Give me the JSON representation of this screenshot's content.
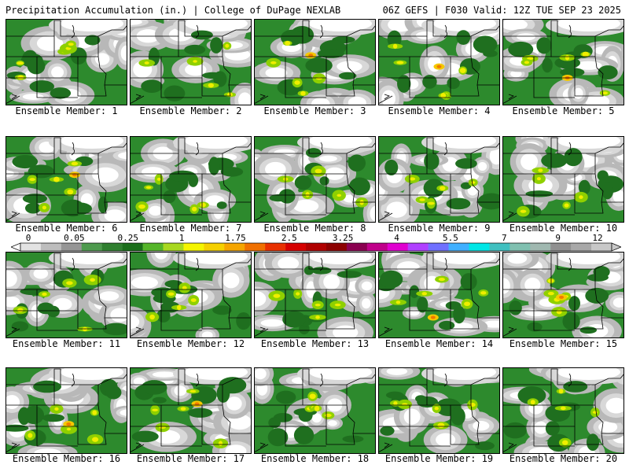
{
  "header": {
    "left": "Precipitation Accumulation (in.) | College of DuPage NEXLAB",
    "right": "06Z GEFS | F030 Valid: 12Z TUE SEP 23 2025"
  },
  "legend": {
    "ticks": [
      "0",
      "0.05",
      "0.25",
      "1",
      "1.75",
      "2.5",
      "3.25",
      "4",
      "5.5",
      "7",
      "9",
      "12"
    ],
    "colors": [
      "#e3e3e3",
      "#bdbdbd",
      "#969696",
      "#4e9a4e",
      "#2f7f2f",
      "#1a6e1a",
      "#55b52a",
      "#a8d820",
      "#f5f500",
      "#f5d000",
      "#f5a500",
      "#f07000",
      "#e83000",
      "#d60000",
      "#b00000",
      "#8c0000",
      "#8a0050",
      "#c0008a",
      "#e000d0",
      "#b040ff",
      "#7070ff",
      "#40b0ff",
      "#00e6e6",
      "#40c0c0",
      "#80c0b0",
      "#a0b8b0",
      "#909090",
      "#a8a8a8",
      "#c8c8c8"
    ]
  },
  "panels": [
    {
      "label": "Ensemble Member: 1"
    },
    {
      "label": "Ensemble Member: 2"
    },
    {
      "label": "Ensemble Member: 3"
    },
    {
      "label": "Ensemble Member: 4"
    },
    {
      "label": "Ensemble Member: 5"
    },
    {
      "label": "Ensemble Member: 6"
    },
    {
      "label": "Ensemble Member: 7"
    },
    {
      "label": "Ensemble Member: 8"
    },
    {
      "label": "Ensemble Member: 9"
    },
    {
      "label": "Ensemble Member: 10"
    },
    {
      "label": "Ensemble Member: 11"
    },
    {
      "label": "Ensemble Member: 12"
    },
    {
      "label": "Ensemble Member: 13"
    },
    {
      "label": "Ensemble Member: 14"
    },
    {
      "label": "Ensemble Member: 15"
    },
    {
      "label": "Ensemble Member: 16"
    },
    {
      "label": "Ensemble Member: 17"
    },
    {
      "label": "Ensemble Member: 18"
    },
    {
      "label": "Ensemble Member: 19"
    },
    {
      "label": "Ensemble Member: 20"
    }
  ]
}
